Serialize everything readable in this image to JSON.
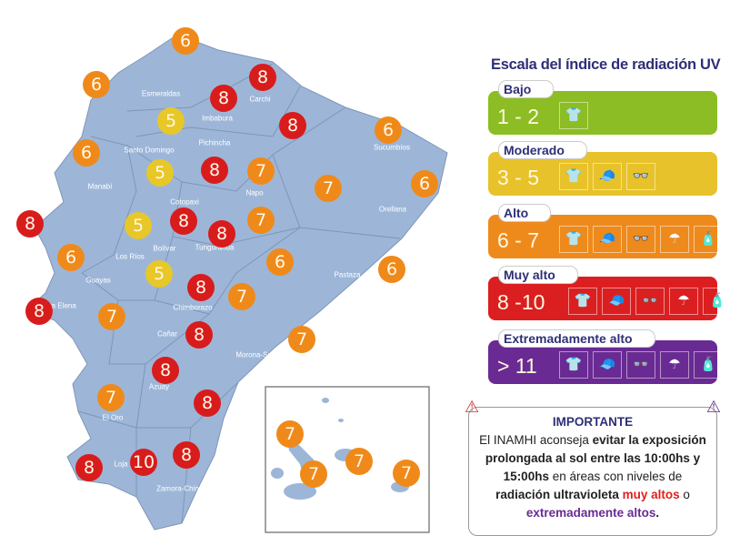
{
  "map": {
    "markers": [
      6,
      6,
      8,
      8,
      5,
      8,
      6,
      6,
      5,
      8,
      7,
      7,
      6,
      8,
      5,
      8,
      8,
      7,
      6,
      6,
      6,
      5,
      8,
      7,
      8,
      7,
      8,
      7,
      8,
      7,
      8,
      8,
      8,
      10
    ],
    "galapagos_markers": [
      7,
      7,
      7,
      7
    ],
    "provinces": [
      "Esmeraldas",
      "Carchi",
      "Imbabura",
      "Pichincha",
      "Santo Domingo",
      "Sucumbíos",
      "Manabí",
      "Cotopaxi",
      "Napo",
      "Orellana",
      "Bolívar",
      "Tungurahua",
      "Los Ríos",
      "Pastaza",
      "Guayas",
      "Santa Elena",
      "Chimborazo",
      "Cañar",
      "Morona-Santiago",
      "Azuay",
      "El Oro",
      "Loja",
      "Zamora-Chinchipe"
    ],
    "land_color": "#9db6d8",
    "colors": {
      "5": "#e8c728",
      "6": "#ef8a1a",
      "7": "#ef8a1a",
      "8": "#d81c1c",
      "10": "#d81c1c"
    }
  },
  "legend": {
    "title": "Escala del índice de radiación UV",
    "levels": [
      {
        "name": "Bajo",
        "range": "1 - 2",
        "color": "#8cbd24",
        "icons": [
          "shirt"
        ]
      },
      {
        "name": "Moderado",
        "range": "3 - 5",
        "color": "#e8c22a",
        "icons": [
          "shirt",
          "cap",
          "sunglasses"
        ]
      },
      {
        "name": "Alto",
        "range": "6 - 7",
        "color": "#ee8a1c",
        "icons": [
          "shirt",
          "cap",
          "sunglasses",
          "umbrella",
          "sunscreen"
        ]
      },
      {
        "name": "Muy alto",
        "range": "8 -10",
        "color": "#db1f20",
        "icons": [
          "shirt",
          "cap",
          "sunglasses",
          "umbrella",
          "sunscreen"
        ]
      },
      {
        "name": "Extremadamente alto",
        "range": "> 11",
        "color": "#6a2a93",
        "icons": [
          "shirt",
          "cap",
          "sunglasses",
          "umbrella",
          "sunscreen"
        ]
      }
    ]
  },
  "important": {
    "title": "IMPORTANTE",
    "t1": "El INAMHI aconseja ",
    "t2": "evitar la exposición prolongada al sol entre las 10:00hs y 15:00hs",
    "t3": " en áreas con niveles de ",
    "t4": "radiación ultravioleta",
    "t5": "muy altos",
    "t6": " o ",
    "t7": "extremadamente altos",
    "t8": "."
  }
}
